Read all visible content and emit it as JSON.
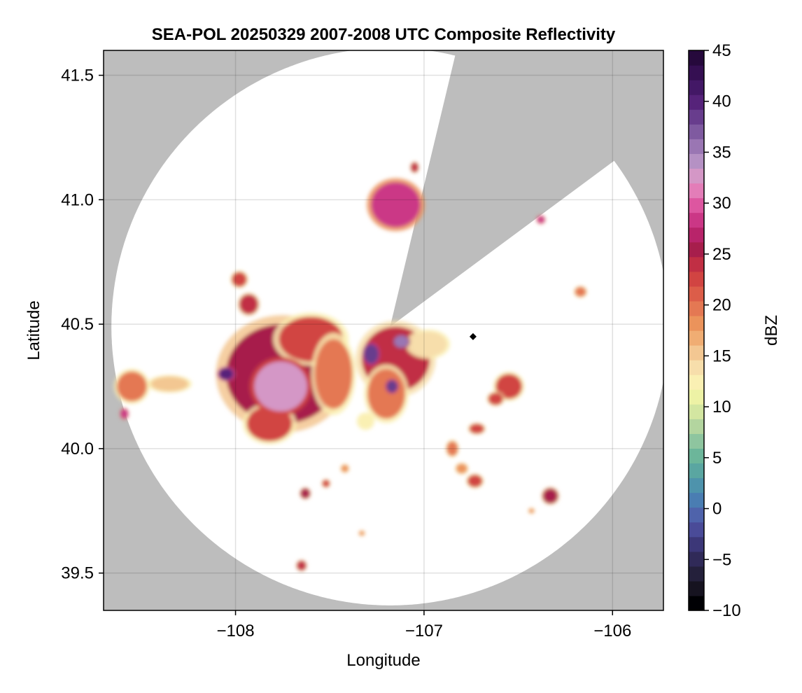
{
  "chart_data": {
    "type": "heatmap",
    "title": "SEA-POL 20250329 2007-2008 UTC Composite Reflectivity",
    "xlabel": "Longitude",
    "ylabel": "Latitude",
    "xlim": [
      -108.7,
      -105.73
    ],
    "ylim": [
      39.35,
      41.6
    ],
    "grid": true,
    "x_ticks": [
      {
        "value": -108,
        "label": "−108"
      },
      {
        "value": -107,
        "label": "−107"
      },
      {
        "value": -106,
        "label": "−106"
      }
    ],
    "y_ticks": [
      {
        "value": 39.5,
        "label": "39.5"
      },
      {
        "value": 40.0,
        "label": "40.0"
      },
      {
        "value": 40.5,
        "label": "40.5"
      },
      {
        "value": 41.0,
        "label": "41.0"
      },
      {
        "value": 41.5,
        "label": "41.5"
      }
    ],
    "background_color": "#bdbdbd",
    "radar_coverage": {
      "center": [
        -107.18,
        40.49
      ],
      "radius_deg_lat": 1.12,
      "blocked_sectors": [
        {
          "from_lon_lat": [
            -106.84,
            41.53
          ],
          "to_lon_lat": [
            -106.07,
            41.12
          ]
        },
        {
          "from_lon_lat": [
            -107.09,
            40.65
          ],
          "to_lon_lat": [
            -106.99,
            40.62
          ]
        }
      ]
    },
    "radar_site_marker": [
      -106.74,
      40.45
    ],
    "colorbar": {
      "label": "dBZ",
      "min": -10,
      "max": 45,
      "ticks": [
        {
          "value": -10,
          "label": "−10"
        },
        {
          "value": -5,
          "label": "−5"
        },
        {
          "value": 0,
          "label": "0"
        },
        {
          "value": 5,
          "label": "5"
        },
        {
          "value": 10,
          "label": "10"
        },
        {
          "value": 15,
          "label": "15"
        },
        {
          "value": 20,
          "label": "20"
        },
        {
          "value": 25,
          "label": "25"
        },
        {
          "value": 30,
          "label": "30"
        },
        {
          "value": 35,
          "label": "35"
        },
        {
          "value": 40,
          "label": "40"
        },
        {
          "value": 45,
          "label": "45"
        }
      ],
      "colors": [
        "#000004",
        "#161320",
        "#24203b",
        "#302a58",
        "#3c3778",
        "#4a4b98",
        "#4f63ab",
        "#4a7db2",
        "#4e93ac",
        "#5aa6a1",
        "#6cb69a",
        "#8ec59f",
        "#b3d59f",
        "#d3e6a1",
        "#edf2a5",
        "#faf0b3",
        "#f7deab",
        "#f3c792",
        "#f0ad73",
        "#eb935b",
        "#e47853",
        "#dc5d49",
        "#d14442",
        "#c12f44",
        "#a71e4c",
        "#b8246a",
        "#cb3786",
        "#dd56a0",
        "#e37db8",
        "#d497c6",
        "#b591c4",
        "#9a76b3",
        "#7f5aa0",
        "#683d8d",
        "#56237a",
        "#431866",
        "#350f52",
        "#26093c"
      ]
    },
    "echo_cells": [
      {
        "name": "main-storm-west",
        "lon": -107.75,
        "lat": 40.3,
        "rx": 0.3,
        "ry": 0.2,
        "dbz": 26
      },
      {
        "name": "main-storm-north-lobe",
        "lon": -107.6,
        "lat": 40.44,
        "rx": 0.17,
        "ry": 0.09,
        "dbz": 22
      },
      {
        "name": "main-storm-south-tail",
        "lon": -107.82,
        "lat": 40.1,
        "rx": 0.12,
        "ry": 0.07,
        "dbz": 22
      },
      {
        "name": "main-storm-core",
        "lon": -107.76,
        "lat": 40.25,
        "rx": 0.14,
        "ry": 0.1,
        "dbz": 32
      },
      {
        "name": "main-storm-east-edge",
        "lon": -107.48,
        "lat": 40.3,
        "rx": 0.1,
        "ry": 0.14,
        "dbz": 20
      },
      {
        "name": "west-cell-core",
        "lon": -108.05,
        "lat": 40.3,
        "rx": 0.04,
        "ry": 0.025,
        "dbz": 40
      },
      {
        "name": "central-storm",
        "lon": -107.15,
        "lat": 40.36,
        "rx": 0.18,
        "ry": 0.13,
        "dbz": 24
      },
      {
        "name": "central-storm-south",
        "lon": -107.2,
        "lat": 40.22,
        "rx": 0.1,
        "ry": 0.1,
        "dbz": 20
      },
      {
        "name": "central-cell-core",
        "lon": -107.28,
        "lat": 40.38,
        "rx": 0.04,
        "ry": 0.04,
        "dbz": 39
      },
      {
        "name": "central-cell-core-2",
        "lon": -107.17,
        "lat": 40.25,
        "rx": 0.03,
        "ry": 0.025,
        "dbz": 38
      },
      {
        "name": "central-east-band",
        "lon": -106.98,
        "lat": 40.42,
        "rx": 0.1,
        "ry": 0.05,
        "dbz": 14
      },
      {
        "name": "central-east-core",
        "lon": -107.12,
        "lat": 40.43,
        "rx": 0.04,
        "ry": 0.025,
        "dbz": 35
      },
      {
        "name": "north-cell",
        "lon": -107.15,
        "lat": 40.98,
        "rx": 0.13,
        "ry": 0.09,
        "dbz": 28
      },
      {
        "name": "north-cell-top",
        "lon": -107.05,
        "lat": 41.13,
        "rx": 0.02,
        "ry": 0.02,
        "dbz": 24
      },
      {
        "name": "cell-40-6",
        "lon": -107.93,
        "lat": 40.58,
        "rx": 0.05,
        "ry": 0.04,
        "dbz": 24
      },
      {
        "name": "cell-40-68",
        "lon": -107.98,
        "lat": 40.68,
        "rx": 0.04,
        "ry": 0.03,
        "dbz": 22
      },
      {
        "name": "west-band",
        "lon": -108.55,
        "lat": 40.25,
        "rx": 0.08,
        "ry": 0.06,
        "dbz": 20
      },
      {
        "name": "west-band-2",
        "lon": -108.35,
        "lat": 40.26,
        "rx": 0.1,
        "ry": 0.03,
        "dbz": 16
      },
      {
        "name": "west-band-tail",
        "lon": -108.59,
        "lat": 40.14,
        "rx": 0.02,
        "ry": 0.02,
        "dbz": 28
      },
      {
        "name": "east-cell-1",
        "lon": -106.55,
        "lat": 40.25,
        "rx": 0.07,
        "ry": 0.05,
        "dbz": 22
      },
      {
        "name": "east-cell-2",
        "lon": -106.62,
        "lat": 40.2,
        "rx": 0.04,
        "ry": 0.025,
        "dbz": 22
      },
      {
        "name": "east-cell-3",
        "lon": -106.72,
        "lat": 40.08,
        "rx": 0.04,
        "ry": 0.02,
        "dbz": 22
      },
      {
        "name": "east-cell-4",
        "lon": -106.85,
        "lat": 40.0,
        "rx": 0.03,
        "ry": 0.03,
        "dbz": 20
      },
      {
        "name": "east-cell-5",
        "lon": -106.8,
        "lat": 39.92,
        "rx": 0.03,
        "ry": 0.02,
        "dbz": 18
      },
      {
        "name": "east-cell-6",
        "lon": -106.73,
        "lat": 39.87,
        "rx": 0.04,
        "ry": 0.025,
        "dbz": 22
      },
      {
        "name": "southeast-cell",
        "lon": -106.33,
        "lat": 39.81,
        "rx": 0.04,
        "ry": 0.03,
        "dbz": 25
      },
      {
        "name": "far-east-cell",
        "lon": -106.17,
        "lat": 40.63,
        "rx": 0.03,
        "ry": 0.02,
        "dbz": 20
      },
      {
        "name": "northeast-speck",
        "lon": -106.38,
        "lat": 40.92,
        "rx": 0.02,
        "ry": 0.015,
        "dbz": 28
      },
      {
        "name": "south-cell-1",
        "lon": -107.63,
        "lat": 39.82,
        "rx": 0.025,
        "ry": 0.02,
        "dbz": 25
      },
      {
        "name": "south-cell-2",
        "lon": -107.65,
        "lat": 39.53,
        "rx": 0.025,
        "ry": 0.02,
        "dbz": 24
      },
      {
        "name": "south-cell-3",
        "lon": -107.52,
        "lat": 39.86,
        "rx": 0.02,
        "ry": 0.015,
        "dbz": 22
      },
      {
        "name": "south-cell-4",
        "lon": -107.42,
        "lat": 39.92,
        "rx": 0.02,
        "ry": 0.015,
        "dbz": 18
      },
      {
        "name": "south-cell-5",
        "lon": -107.31,
        "lat": 40.11,
        "rx": 0.04,
        "ry": 0.03,
        "dbz": 12
      },
      {
        "name": "south-cell-6",
        "lon": -107.33,
        "lat": 39.66,
        "rx": 0.015,
        "ry": 0.01,
        "dbz": 18
      },
      {
        "name": "southeast-speck",
        "lon": -106.43,
        "lat": 39.75,
        "rx": 0.015,
        "ry": 0.01,
        "dbz": 18
      }
    ]
  }
}
